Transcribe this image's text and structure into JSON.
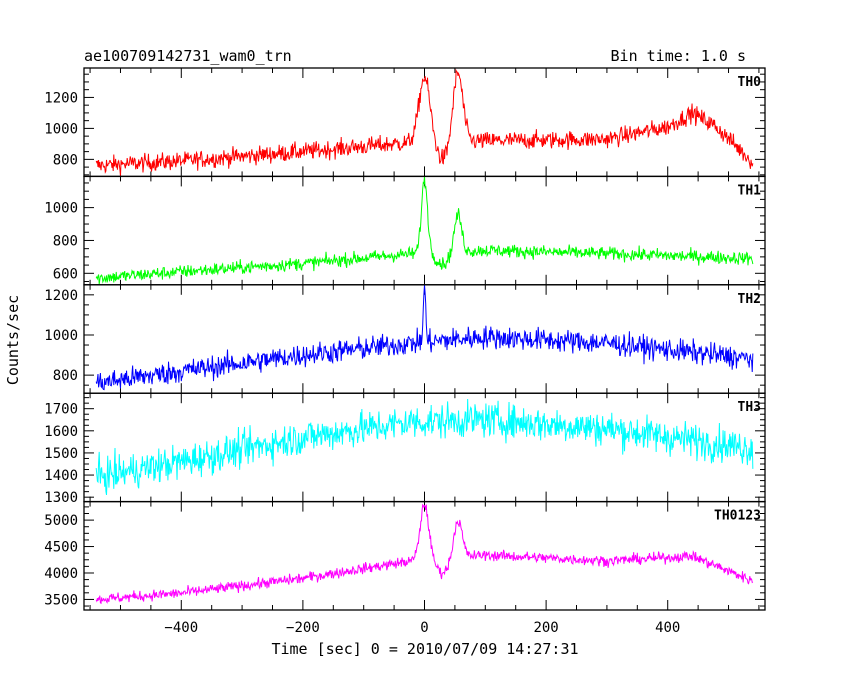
{
  "header": {
    "title": "ae100709142731_wam0_trn",
    "bin_time": "Bin time: 1.0 s"
  },
  "axes": {
    "xlabel": "Time [sec] 0 = 2010/07/09 14:27:31",
    "ylabel": "Counts/sec"
  },
  "chart_data": {
    "type": "line",
    "x_range": [
      -560,
      560
    ],
    "x_ticks": [
      -400,
      -200,
      0,
      200,
      400
    ],
    "x_tick_labels": [
      "−400",
      "−200",
      "0",
      "200",
      "400"
    ],
    "x_data_range": [
      -540,
      540
    ],
    "bin_time_s": 1.0,
    "grid": false,
    "panels": [
      {
        "name": "TH0",
        "color": "#ff0000",
        "ylim": [
          690,
          1390
        ],
        "yticks": [
          800,
          1000,
          1200
        ],
        "ytick_labels": [
          "800",
          "1000",
          "1200"
        ],
        "noise": 40,
        "baseline_points": [
          [
            -540,
            760
          ],
          [
            -400,
            790
          ],
          [
            -200,
            850
          ],
          [
            -20,
            910
          ],
          [
            100,
            920
          ],
          [
            300,
            930
          ],
          [
            400,
            1010
          ],
          [
            440,
            1100
          ],
          [
            480,
            1010
          ],
          [
            540,
            780
          ]
        ],
        "peaks": [
          [
            0,
            1330,
            9
          ],
          [
            55,
            1360,
            8
          ]
        ],
        "dips": [
          [
            30,
            790,
            10
          ]
        ]
      },
      {
        "name": "TH1",
        "color": "#00ff00",
        "ylim": [
          530,
          1190
        ],
        "yticks": [
          600,
          800,
          1000
        ],
        "ytick_labels": [
          "600",
          "800",
          "1000"
        ],
        "noise": 28,
        "baseline_points": [
          [
            -540,
            570
          ],
          [
            -400,
            610
          ],
          [
            -200,
            660
          ],
          [
            -20,
            720
          ],
          [
            100,
            740
          ],
          [
            300,
            720
          ],
          [
            540,
            690
          ]
        ],
        "peaks": [
          [
            0,
            1170,
            5
          ],
          [
            55,
            960,
            6
          ]
        ],
        "dips": [
          [
            30,
            650,
            10
          ]
        ]
      },
      {
        "name": "TH2",
        "color": "#0000ff",
        "ylim": [
          710,
          1250
        ],
        "yticks": [
          800,
          1000,
          1200
        ],
        "ytick_labels": [
          "800",
          "1000",
          "1200"
        ],
        "noise": 40,
        "baseline_points": [
          [
            -540,
            760
          ],
          [
            -400,
            820
          ],
          [
            -200,
            900
          ],
          [
            -20,
            960
          ],
          [
            100,
            990
          ],
          [
            300,
            960
          ],
          [
            540,
            880
          ]
        ],
        "peaks": [
          [
            0,
            1240,
            2
          ]
        ],
        "dips": []
      },
      {
        "name": "TH3",
        "color": "#00ffff",
        "ylim": [
          1280,
          1770
        ],
        "yticks": [
          1300,
          1400,
          1500,
          1600,
          1700
        ],
        "ytick_labels": [
          "1300",
          "1400",
          "1500",
          "1600",
          "1700"
        ],
        "noise": 55,
        "baseline_points": [
          [
            -540,
            1390
          ],
          [
            -400,
            1460
          ],
          [
            -200,
            1570
          ],
          [
            -20,
            1640
          ],
          [
            100,
            1650
          ],
          [
            300,
            1610
          ],
          [
            540,
            1520
          ]
        ],
        "peaks": [],
        "dips": []
      },
      {
        "name": "TH0123",
        "color": "#ff00ff",
        "ylim": [
          3300,
          5350
        ],
        "yticks": [
          3500,
          4000,
          4500,
          5000
        ],
        "ytick_labels": [
          "3500",
          "4000",
          "4500",
          "5000"
        ],
        "noise": 70,
        "baseline_points": [
          [
            -540,
            3500
          ],
          [
            -400,
            3620
          ],
          [
            -200,
            3900
          ],
          [
            -20,
            4230
          ],
          [
            100,
            4340
          ],
          [
            300,
            4230
          ],
          [
            440,
            4320
          ],
          [
            540,
            3850
          ]
        ],
        "peaks": [
          [
            0,
            5300,
            7
          ],
          [
            55,
            5000,
            7
          ]
        ],
        "dips": [
          [
            30,
            3980,
            10
          ]
        ]
      }
    ]
  }
}
